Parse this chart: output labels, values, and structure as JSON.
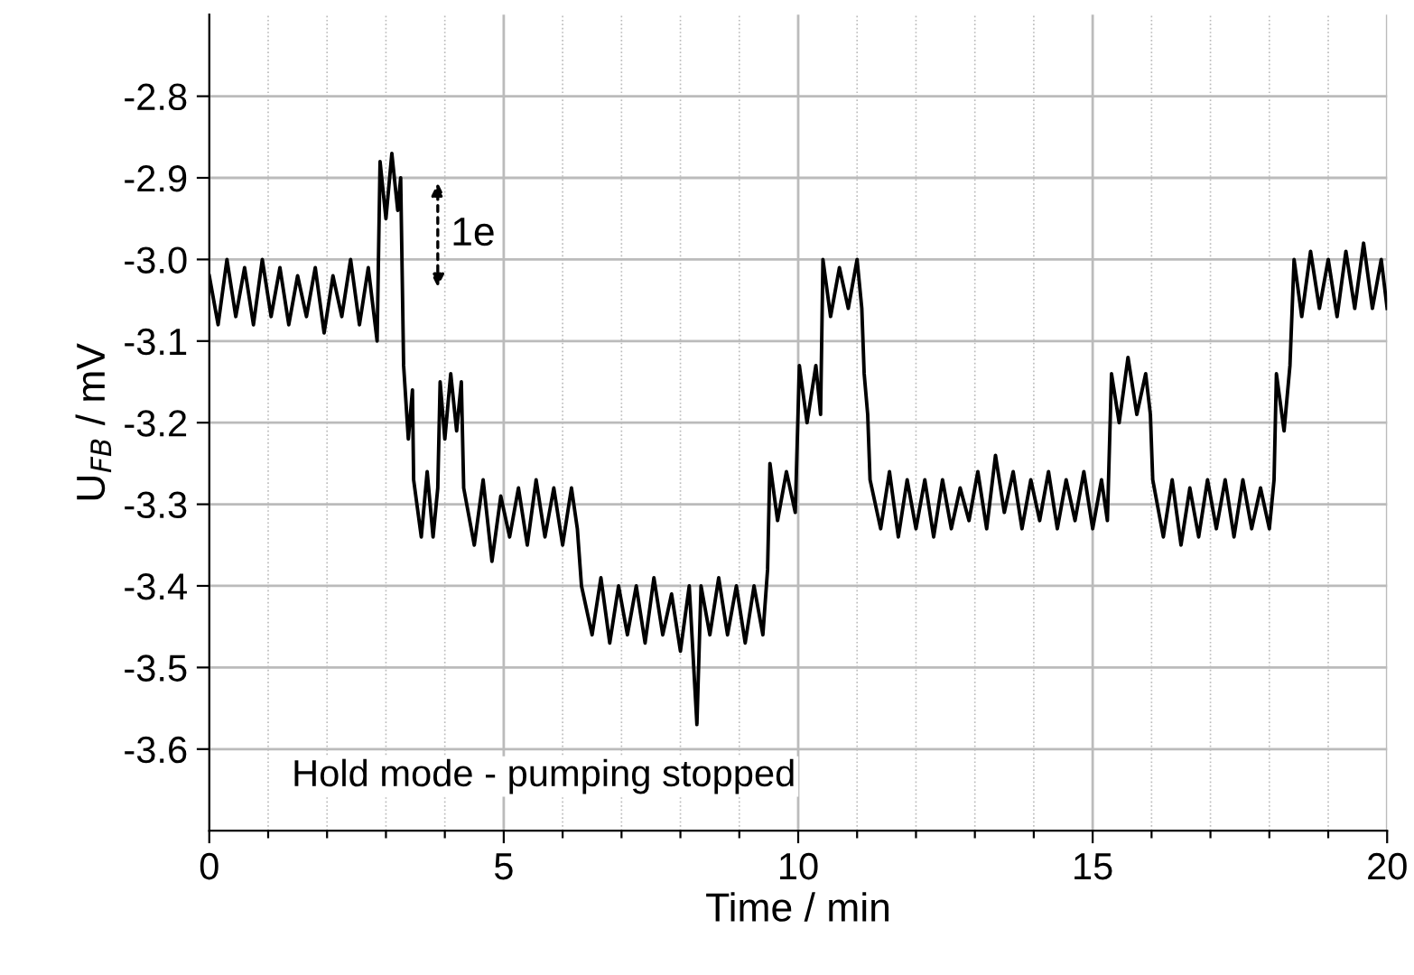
{
  "chart_data": {
    "type": "line",
    "xlabel": "Time / min",
    "ylabel": "U$_{FB}$ / mV",
    "xlim": [
      0,
      20
    ],
    "ylim": [
      -3.7,
      -2.7
    ],
    "xticks": [
      0,
      {
        "value": 1,
        "label": null
      },
      {
        "value": 2,
        "label": null
      },
      {
        "value": 3,
        "label": null
      },
      {
        "value": 4,
        "label": null
      },
      5,
      {
        "value": 6,
        "label": null
      },
      {
        "value": 7,
        "label": null
      },
      {
        "value": 8,
        "label": null
      },
      {
        "value": 9,
        "label": null
      },
      10,
      {
        "value": 11,
        "label": null
      },
      {
        "value": 12,
        "label": null
      },
      {
        "value": 13,
        "label": null
      },
      {
        "value": 14,
        "label": null
      },
      15,
      {
        "value": 16,
        "label": null
      },
      {
        "value": 17,
        "label": null
      },
      {
        "value": 18,
        "label": null
      },
      {
        "value": 19,
        "label": null
      },
      20
    ],
    "yticks": [
      -3.6,
      -3.5,
      -3.4,
      -3.3,
      -3.2,
      -3.1,
      {
        "value": -3.0,
        "label": "-3.0"
      },
      -2.9,
      -2.8
    ],
    "grid": true,
    "legend": false,
    "marker": "none",
    "line_style": "solid",
    "annotations": [
      "1e",
      "Hold mode - pumping stopped"
    ],
    "series": [
      {
        "color": "#000000",
        "x": [
          0,
          0.15,
          0.3,
          0.45,
          0.6,
          0.75,
          0.9,
          1.05,
          1.2,
          1.35,
          1.5,
          1.65,
          1.8,
          1.95,
          2.1,
          2.25,
          2.4,
          2.55,
          2.7,
          2.85,
          2.9,
          3.0,
          3.1,
          3.2,
          3.25,
          3.3,
          3.38,
          3.45,
          3.47,
          3.6,
          3.7,
          3.8,
          3.88,
          3.92,
          4.0,
          4.1,
          4.2,
          4.28,
          4.32,
          4.5,
          4.65,
          4.8,
          4.95,
          5.1,
          5.25,
          5.4,
          5.55,
          5.7,
          5.85,
          6.0,
          6.15,
          6.25,
          6.32,
          6.5,
          6.65,
          6.8,
          6.95,
          7.1,
          7.25,
          7.4,
          7.55,
          7.7,
          7.85,
          8.0,
          8.15,
          8.28,
          8.35,
          8.5,
          8.65,
          8.8,
          8.95,
          9.1,
          9.25,
          9.4,
          9.48,
          9.52,
          9.65,
          9.8,
          9.95,
          10.02,
          10.15,
          10.3,
          10.38,
          10.42,
          10.55,
          10.7,
          10.85,
          11.0,
          11.08,
          11.12,
          11.18,
          11.22,
          11.4,
          11.55,
          11.7,
          11.85,
          12.0,
          12.15,
          12.3,
          12.45,
          12.6,
          12.75,
          12.9,
          13.05,
          13.2,
          13.35,
          13.5,
          13.65,
          13.8,
          13.95,
          14.1,
          14.25,
          14.4,
          14.55,
          14.7,
          14.85,
          15.0,
          15.15,
          15.25,
          15.32,
          15.45,
          15.6,
          15.75,
          15.9,
          15.98,
          16.02,
          16.2,
          16.35,
          16.5,
          16.65,
          16.8,
          16.95,
          17.1,
          17.25,
          17.4,
          17.55,
          17.7,
          17.85,
          18.0,
          18.08,
          18.12,
          18.25,
          18.35,
          18.42,
          18.55,
          18.7,
          18.85,
          19.0,
          19.15,
          19.3,
          19.45,
          19.6,
          19.75,
          19.9,
          20.0
        ],
        "values": [
          -3.02,
          -3.08,
          -3.0,
          -3.07,
          -3.01,
          -3.08,
          -3.0,
          -3.07,
          -3.01,
          -3.08,
          -3.02,
          -3.07,
          -3.01,
          -3.09,
          -3.02,
          -3.07,
          -3.0,
          -3.08,
          -3.01,
          -3.1,
          -2.88,
          -2.95,
          -2.87,
          -2.94,
          -2.9,
          -3.13,
          -3.22,
          -3.16,
          -3.27,
          -3.34,
          -3.26,
          -3.34,
          -3.28,
          -3.15,
          -3.22,
          -3.14,
          -3.21,
          -3.15,
          -3.28,
          -3.35,
          -3.27,
          -3.37,
          -3.29,
          -3.34,
          -3.28,
          -3.35,
          -3.27,
          -3.34,
          -3.28,
          -3.35,
          -3.28,
          -3.33,
          -3.4,
          -3.46,
          -3.39,
          -3.47,
          -3.4,
          -3.46,
          -3.4,
          -3.47,
          -3.39,
          -3.46,
          -3.41,
          -3.48,
          -3.4,
          -3.57,
          -3.4,
          -3.46,
          -3.39,
          -3.46,
          -3.4,
          -3.47,
          -3.4,
          -3.46,
          -3.38,
          -3.25,
          -3.32,
          -3.26,
          -3.31,
          -3.13,
          -3.2,
          -3.13,
          -3.19,
          -3.0,
          -3.07,
          -3.01,
          -3.06,
          -3.0,
          -3.06,
          -3.14,
          -3.19,
          -3.27,
          -3.33,
          -3.26,
          -3.34,
          -3.27,
          -3.33,
          -3.27,
          -3.34,
          -3.27,
          -3.33,
          -3.28,
          -3.32,
          -3.26,
          -3.33,
          -3.24,
          -3.31,
          -3.26,
          -3.33,
          -3.27,
          -3.32,
          -3.26,
          -3.33,
          -3.27,
          -3.32,
          -3.26,
          -3.33,
          -3.27,
          -3.32,
          -3.14,
          -3.2,
          -3.12,
          -3.19,
          -3.14,
          -3.19,
          -3.27,
          -3.34,
          -3.27,
          -3.35,
          -3.28,
          -3.34,
          -3.27,
          -3.33,
          -3.27,
          -3.34,
          -3.27,
          -3.33,
          -3.28,
          -3.33,
          -3.27,
          -3.14,
          -3.21,
          -3.13,
          -3.0,
          -3.07,
          -2.99,
          -3.06,
          -3.0,
          -3.07,
          -2.99,
          -3.06,
          -2.98,
          -3.06,
          -3.0,
          -3.06
        ]
      }
    ]
  }
}
